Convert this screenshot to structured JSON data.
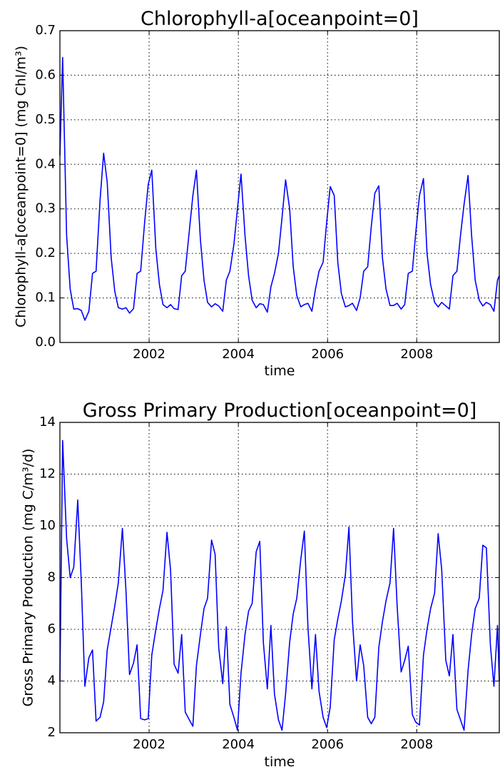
{
  "chart_data": [
    {
      "type": "line",
      "title": "Chlorophyll-a[oceanpoint=0]",
      "xlabel": "time",
      "ylabel": "Chlorophyll-a[oceanpoint=0] (mg Chl/m³)",
      "xlim": [
        2000.0,
        2009.85
      ],
      "ylim": [
        0,
        0.7
      ],
      "yticks": [
        "0.0",
        "0.1",
        "0.2",
        "0.3",
        "0.4",
        "0.5",
        "0.6",
        "0.7"
      ],
      "xticks": [
        2002,
        2004,
        2006,
        2008
      ],
      "xtick_labels": [
        "2002",
        "2004",
        "2006",
        "2008"
      ],
      "grid": true,
      "color": "#0000ff",
      "series": [
        {
          "x": [
            2000.0,
            2000.06,
            2000.15,
            2000.23,
            2000.31,
            2000.4,
            2000.48,
            2000.56,
            2000.65,
            2000.73,
            2000.81,
            2000.9,
            2000.98,
            2001.06,
            2001.15,
            2001.23,
            2001.31,
            2001.4,
            2001.48,
            2001.56,
            2001.65,
            2001.73,
            2001.81,
            2001.9,
            2001.98,
            2002.06,
            2002.15,
            2002.23,
            2002.31,
            2002.4,
            2002.48,
            2002.56,
            2002.65,
            2002.73,
            2002.81,
            2002.9,
            2002.98,
            2003.06,
            2003.15,
            2003.23,
            2003.31,
            2003.4,
            2003.48,
            2003.56,
            2003.65,
            2003.73,
            2003.81,
            2003.9,
            2003.98,
            2004.06,
            2004.15,
            2004.23,
            2004.31,
            2004.4,
            2004.48,
            2004.56,
            2004.65,
            2004.73,
            2004.81,
            2004.9,
            2004.98,
            2005.06,
            2005.15,
            2005.23,
            2005.31,
            2005.4,
            2005.48,
            2005.56,
            2005.65,
            2005.73,
            2005.81,
            2005.9,
            2005.98,
            2006.06,
            2006.15,
            2006.23,
            2006.31,
            2006.4,
            2006.48,
            2006.56,
            2006.65,
            2006.73,
            2006.81,
            2006.9,
            2006.98,
            2007.06,
            2007.15,
            2007.23,
            2007.31,
            2007.4,
            2007.48,
            2007.56,
            2007.65,
            2007.73,
            2007.81,
            2007.9,
            2007.98,
            2008.06,
            2008.15,
            2008.23,
            2008.31,
            2008.4,
            2008.48,
            2008.56,
            2008.65,
            2008.73,
            2008.81,
            2008.9,
            2008.98,
            2009.06,
            2009.15,
            2009.23,
            2009.31,
            2009.4,
            2009.48,
            2009.56,
            2009.65,
            2009.73,
            2009.81,
            2009.85
          ],
          "values": [
            0.42,
            0.64,
            0.24,
            0.12,
            0.075,
            0.076,
            0.072,
            0.05,
            0.07,
            0.155,
            0.16,
            0.32,
            0.425,
            0.36,
            0.19,
            0.115,
            0.078,
            0.075,
            0.078,
            0.066,
            0.076,
            0.155,
            0.16,
            0.27,
            0.355,
            0.387,
            0.21,
            0.13,
            0.085,
            0.078,
            0.085,
            0.076,
            0.074,
            0.15,
            0.16,
            0.25,
            0.33,
            0.387,
            0.23,
            0.14,
            0.09,
            0.08,
            0.087,
            0.082,
            0.07,
            0.14,
            0.16,
            0.22,
            0.3,
            0.378,
            0.24,
            0.15,
            0.095,
            0.078,
            0.087,
            0.085,
            0.068,
            0.125,
            0.155,
            0.2,
            0.28,
            0.365,
            0.3,
            0.17,
            0.105,
            0.08,
            0.085,
            0.088,
            0.07,
            0.12,
            0.16,
            0.18,
            0.27,
            0.35,
            0.33,
            0.18,
            0.11,
            0.08,
            0.083,
            0.088,
            0.072,
            0.1,
            0.16,
            0.17,
            0.26,
            0.335,
            0.352,
            0.19,
            0.12,
            0.083,
            0.083,
            0.088,
            0.075,
            0.085,
            0.155,
            0.16,
            0.25,
            0.33,
            0.368,
            0.2,
            0.13,
            0.09,
            0.08,
            0.09,
            0.082,
            0.075,
            0.15,
            0.16,
            0.24,
            0.31,
            0.375,
            0.24,
            0.14,
            0.095,
            0.082,
            0.09,
            0.085,
            0.07,
            0.14,
            0.15
          ]
        }
      ]
    },
    {
      "type": "line",
      "title": "Gross Primary Production[oceanpoint=0]",
      "xlabel": "time",
      "ylabel": "Gross Primary Production (mg C/m³/d)",
      "xlim": [
        2000.0,
        2009.85
      ],
      "ylim": [
        2,
        14
      ],
      "yticks": [
        "2",
        "4",
        "6",
        "8",
        "10",
        "12",
        "14"
      ],
      "xticks": [
        2002,
        2004,
        2006,
        2008
      ],
      "xtick_labels": [
        "2002",
        "2004",
        "2006",
        "2008"
      ],
      "grid": true,
      "color": "#0000ff",
      "series": [
        {
          "x": [
            2000.0,
            2000.06,
            2000.15,
            2000.23,
            2000.31,
            2000.4,
            2000.48,
            2000.56,
            2000.65,
            2000.73,
            2000.81,
            2000.9,
            2000.98,
            2001.06,
            2001.15,
            2001.23,
            2001.31,
            2001.4,
            2001.48,
            2001.56,
            2001.65,
            2001.73,
            2001.81,
            2001.9,
            2001.98,
            2002.06,
            2002.15,
            2002.23,
            2002.31,
            2002.4,
            2002.48,
            2002.56,
            2002.65,
            2002.73,
            2002.81,
            2002.9,
            2002.98,
            2003.06,
            2003.15,
            2003.23,
            2003.31,
            2003.4,
            2003.48,
            2003.56,
            2003.65,
            2003.73,
            2003.81,
            2003.9,
            2003.98,
            2004.06,
            2004.15,
            2004.23,
            2004.31,
            2004.4,
            2004.48,
            2004.56,
            2004.65,
            2004.73,
            2004.81,
            2004.9,
            2004.98,
            2005.06,
            2005.15,
            2005.23,
            2005.31,
            2005.4,
            2005.48,
            2005.56,
            2005.65,
            2005.73,
            2005.81,
            2005.9,
            2005.98,
            2006.06,
            2006.15,
            2006.23,
            2006.31,
            2006.4,
            2006.48,
            2006.56,
            2006.65,
            2006.73,
            2006.81,
            2006.9,
            2006.98,
            2007.06,
            2007.15,
            2007.23,
            2007.31,
            2007.4,
            2007.48,
            2007.56,
            2007.65,
            2007.73,
            2007.81,
            2007.9,
            2007.98,
            2008.06,
            2008.15,
            2008.23,
            2008.31,
            2008.4,
            2008.48,
            2008.56,
            2008.65,
            2008.73,
            2008.81,
            2008.9,
            2008.98,
            2009.06,
            2009.15,
            2009.23,
            2009.31,
            2009.4,
            2009.48,
            2009.56,
            2009.65,
            2009.73,
            2009.81,
            2009.85
          ],
          "values": [
            4.0,
            13.3,
            9.5,
            8.0,
            8.4,
            11.0,
            7.8,
            3.8,
            4.9,
            5.2,
            2.45,
            2.6,
            3.2,
            5.2,
            6.1,
            6.9,
            7.8,
            9.9,
            7.5,
            4.25,
            4.7,
            5.4,
            2.55,
            2.5,
            2.55,
            5.0,
            6.0,
            6.8,
            7.5,
            9.75,
            8.3,
            4.65,
            4.3,
            5.8,
            2.8,
            2.5,
            2.25,
            4.6,
            5.8,
            6.8,
            7.2,
            9.45,
            8.9,
            5.3,
            3.9,
            6.1,
            3.1,
            2.6,
            2.1,
            4.3,
            5.8,
            6.7,
            7.0,
            9.0,
            9.4,
            5.5,
            3.7,
            6.15,
            3.5,
            2.5,
            2.1,
            3.5,
            5.5,
            6.6,
            7.2,
            8.7,
            9.8,
            6.1,
            3.7,
            5.8,
            3.6,
            2.6,
            2.2,
            3.0,
            5.6,
            6.4,
            7.1,
            8.1,
            9.95,
            6.3,
            4.0,
            5.4,
            4.6,
            2.6,
            2.35,
            2.6,
            5.3,
            6.3,
            7.1,
            7.8,
            9.9,
            6.9,
            4.35,
            4.8,
            5.35,
            2.7,
            2.4,
            2.3,
            5.0,
            6.0,
            6.8,
            7.4,
            9.7,
            8.3,
            4.8,
            4.2,
            5.8,
            2.9,
            2.5,
            2.1,
            4.4,
            5.8,
            6.8,
            7.2,
            9.25,
            9.15,
            5.4,
            3.8,
            6.15,
            4.0
          ]
        }
      ]
    }
  ]
}
